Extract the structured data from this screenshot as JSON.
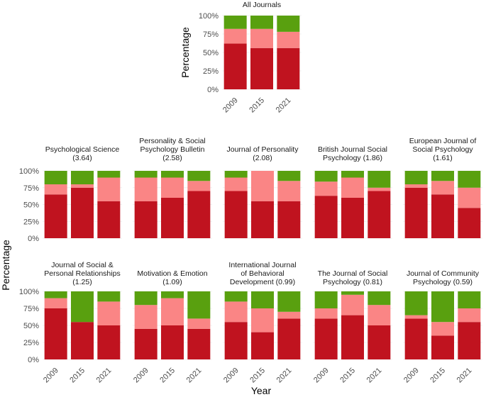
{
  "chart_data": {
    "type": "bar",
    "stacked": true,
    "xlabel": "Year",
    "ylabel": "Percentage",
    "categories": [
      "2009",
      "2015",
      "2021"
    ],
    "y_ticks": [
      "0%",
      "25%",
      "50%",
      "75%",
      "100%"
    ],
    "ylim": [
      0,
      100
    ],
    "segment_colors": [
      "#c0131f",
      "#fa8585",
      "#59a00f"
    ],
    "panels": [
      {
        "title": "All Journals",
        "series": [
          {
            "values": [
              62,
              56,
              56
            ]
          },
          {
            "values": [
              20,
              26,
              22
            ]
          },
          {
            "values": [
              18,
              18,
              22
            ]
          }
        ]
      },
      {
        "title": "Psychological Science (3.64)",
        "series": [
          {
            "values": [
              65,
              75,
              55
            ]
          },
          {
            "values": [
              15,
              5,
              35
            ]
          },
          {
            "values": [
              20,
              20,
              10
            ]
          }
        ]
      },
      {
        "title": "Personality & Social Psychology Bulletin (2.58)",
        "series": [
          {
            "values": [
              55,
              60,
              70
            ]
          },
          {
            "values": [
              35,
              30,
              15
            ]
          },
          {
            "values": [
              10,
              10,
              15
            ]
          }
        ]
      },
      {
        "title": "Journal of Personality (2.08)",
        "series": [
          {
            "values": [
              70,
              55,
              55
            ]
          },
          {
            "values": [
              20,
              45,
              30
            ]
          },
          {
            "values": [
              10,
              0,
              15
            ]
          }
        ]
      },
      {
        "title": "British Journal Social Psychology (1.86)",
        "series": [
          {
            "values": [
              63,
              60,
              70
            ]
          },
          {
            "values": [
              21,
              30,
              5
            ]
          },
          {
            "values": [
              16,
              10,
              25
            ]
          }
        ]
      },
      {
        "title": "European Journal of Social Psychology (1.61)",
        "series": [
          {
            "values": [
              75,
              65,
              45
            ]
          },
          {
            "values": [
              5,
              20,
              30
            ]
          },
          {
            "values": [
              20,
              15,
              25
            ]
          }
        ]
      },
      {
        "title": "Journal of Social & Personal Relationships (1.25)",
        "series": [
          {
            "values": [
              75,
              55,
              50
            ]
          },
          {
            "values": [
              15,
              0,
              35
            ]
          },
          {
            "values": [
              10,
              45,
              15
            ]
          }
        ]
      },
      {
        "title": "Motivation & Emotion (1.09)",
        "series": [
          {
            "values": [
              45,
              50,
              45
            ]
          },
          {
            "values": [
              35,
              40,
              15
            ]
          },
          {
            "values": [
              20,
              10,
              40
            ]
          }
        ]
      },
      {
        "title": "International Journal of Behavioral Development (0.99)",
        "series": [
          {
            "values": [
              55,
              40,
              60
            ]
          },
          {
            "values": [
              30,
              35,
              10
            ]
          },
          {
            "values": [
              15,
              25,
              30
            ]
          }
        ]
      },
      {
        "title": "The Journal of Social Psychology (0.81)",
        "series": [
          {
            "values": [
              60,
              65,
              50
            ]
          },
          {
            "values": [
              15,
              30,
              30
            ]
          },
          {
            "values": [
              25,
              5,
              20
            ]
          }
        ]
      },
      {
        "title": "Journal of Community Psychology (0.59)",
        "series": [
          {
            "values": [
              60,
              35,
              55
            ]
          },
          {
            "values": [
              5,
              20,
              20
            ]
          },
          {
            "values": [
              35,
              45,
              25
            ]
          }
        ]
      }
    ]
  }
}
